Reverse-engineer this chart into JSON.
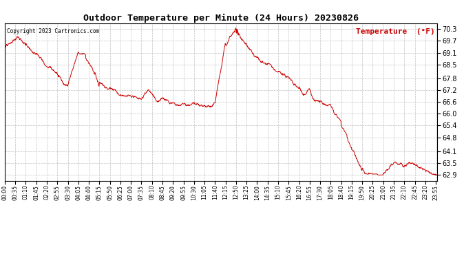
{
  "title": "Outdoor Temperature per Minute (24 Hours) 20230826",
  "copyright_text": "Copyright 2023 Cartronics.com",
  "legend_label": "Temperature  (°F)",
  "line_color": "#cc0000",
  "background_color": "#ffffff",
  "grid_color": "#c0c0c0",
  "yticks": [
    62.9,
    63.5,
    64.1,
    64.8,
    65.4,
    66.0,
    66.6,
    67.2,
    67.8,
    68.5,
    69.1,
    69.7,
    70.3
  ],
  "ymin": 62.6,
  "ymax": 70.6,
  "total_minutes": 1440,
  "xtick_step": 35
}
